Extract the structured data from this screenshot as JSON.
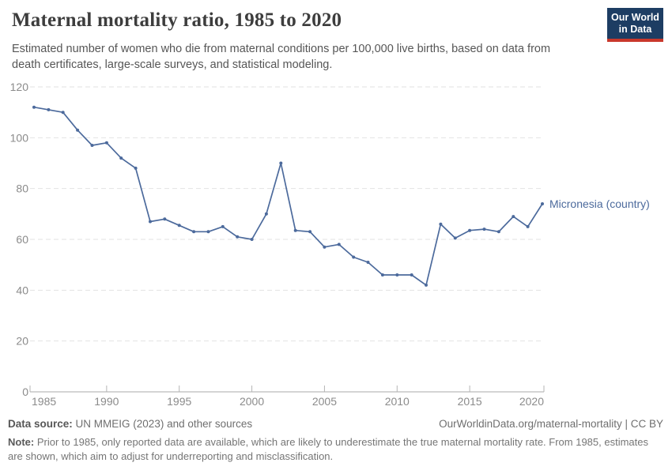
{
  "header": {
    "title": "Maternal mortality ratio, 1985 to 2020",
    "subtitle": "Estimated number of women who die from maternal conditions per 100,000 live births, based on data from death certificates, large-scale surveys, and statistical modeling.",
    "logo": {
      "line1": "Our World",
      "line2": "in Data",
      "bg_color": "#1d3d63",
      "accent_color": "#c9382c"
    }
  },
  "chart_data": {
    "type": "line",
    "title": "Maternal mortality ratio, 1985 to 2020",
    "xlabel": "",
    "ylabel": "",
    "xlim": [
      1985,
      2020
    ],
    "ylim": [
      0,
      120
    ],
    "x_ticks": [
      1985,
      1990,
      1995,
      2000,
      2005,
      2010,
      2015,
      2020
    ],
    "y_ticks": [
      0,
      20,
      40,
      60,
      80,
      100,
      120
    ],
    "grid": "horizontal-dashed",
    "legend_position": "end-of-line-label",
    "series": [
      {
        "name": "Micronesia (country)",
        "color": "#4c6a9c",
        "x": [
          1985,
          1986,
          1987,
          1988,
          1989,
          1990,
          1991,
          1992,
          1993,
          1994,
          1995,
          1996,
          1997,
          1998,
          1999,
          2000,
          2001,
          2002,
          2003,
          2004,
          2005,
          2006,
          2007,
          2008,
          2009,
          2010,
          2011,
          2012,
          2013,
          2014,
          2015,
          2016,
          2017,
          2018,
          2019,
          2020
        ],
        "values": [
          112,
          111,
          110,
          103,
          97,
          98,
          92,
          88,
          67,
          68,
          65.5,
          63,
          63,
          65,
          61,
          60,
          70,
          90,
          63.5,
          63,
          57,
          58,
          53,
          51,
          46,
          46,
          46,
          42,
          66,
          60.5,
          63.5,
          64,
          63,
          69,
          65,
          74
        ]
      }
    ],
    "colors": {
      "grid": "#e2e2e2",
      "axis": "#a8a8a8",
      "tick": "#b5b5b5",
      "tick_label": "#8b8b8b"
    }
  },
  "footer": {
    "source_label": "Data source:",
    "source_text": "UN MMEIG (2023) and other sources",
    "link_text": "OurWorldinData.org/maternal-mortality | CC BY",
    "note_label": "Note:",
    "note_text": "Prior to 1985, only reported data are available, which are likely to underestimate the true maternal mortality rate. From 1985, estimates are shown, which aim to adjust for underreporting and misclassification."
  }
}
